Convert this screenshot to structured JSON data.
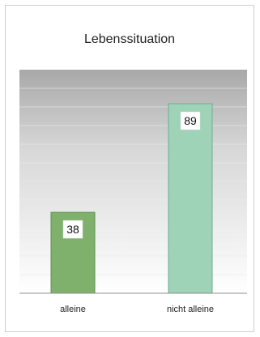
{
  "chart_data": {
    "type": "bar",
    "title": "Lebenssituation",
    "xlabel": "",
    "ylabel": "",
    "categories": [
      "alleine",
      "nicht alleine"
    ],
    "values": [
      38,
      89
    ],
    "ylim": [
      0,
      105
    ],
    "grid": true,
    "legend": "none",
    "show_value_labels": true
  },
  "colors": {
    "bars": [
      "#7fb16c",
      "#9ed3b8"
    ],
    "bar_edges": [
      "#5e8f4f",
      "#6fae94"
    ],
    "plot_bg_top": "#a8a8a8",
    "plot_bg_bottom": "#ffffff",
    "gridline": "#e9e9e9",
    "axis": "#8f8f8f"
  }
}
